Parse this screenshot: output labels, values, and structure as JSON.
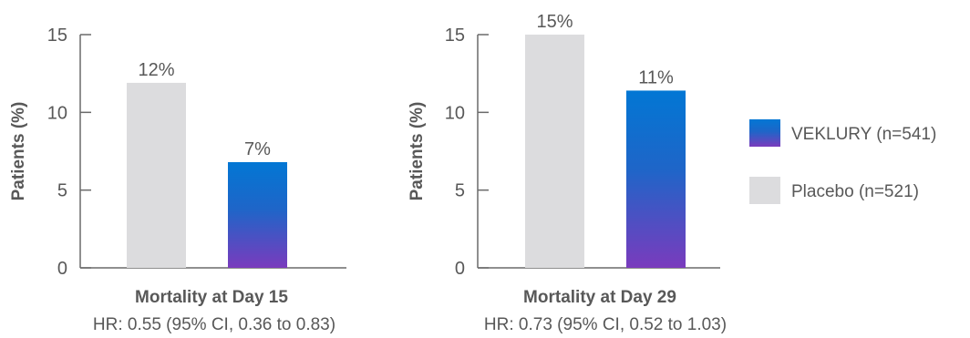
{
  "colors": {
    "placebo": "#dcdcde",
    "veklury_top": "#0277d4",
    "veklury_bottom": "#7a3bbd",
    "axis": "#6a6a6a",
    "text": "#585858"
  },
  "chart_data": [
    {
      "type": "bar",
      "ylabel": "Patients (%)",
      "ylim": [
        0,
        15
      ],
      "yticks": [
        0,
        5,
        10,
        15
      ],
      "xlabel": "Mortality at Day 15",
      "subtitle": "HR: 0.55 (95% CI, 0.36 to 0.83)",
      "series": [
        {
          "name": "Placebo (n=521)",
          "value": 11.9,
          "label": "12%"
        },
        {
          "name": "VEKLURY (n=541)",
          "value": 6.8,
          "label": "7%"
        }
      ]
    },
    {
      "type": "bar",
      "ylabel": "Patients (%)",
      "ylim": [
        0,
        15
      ],
      "yticks": [
        0,
        5,
        10,
        15
      ],
      "xlabel": "Mortality at Day 29",
      "subtitle": "HR: 0.73 (95% CI, 0.52 to 1.03)",
      "series": [
        {
          "name": "Placebo (n=521)",
          "value": 15.0,
          "label": "15%"
        },
        {
          "name": "VEKLURY (n=541)",
          "value": 11.4,
          "label": "11%"
        }
      ]
    }
  ],
  "legend": [
    {
      "label": "VEKLURY (n=541)",
      "fill": "gradient"
    },
    {
      "label": "Placebo (n=521)",
      "fill": "placebo"
    }
  ]
}
